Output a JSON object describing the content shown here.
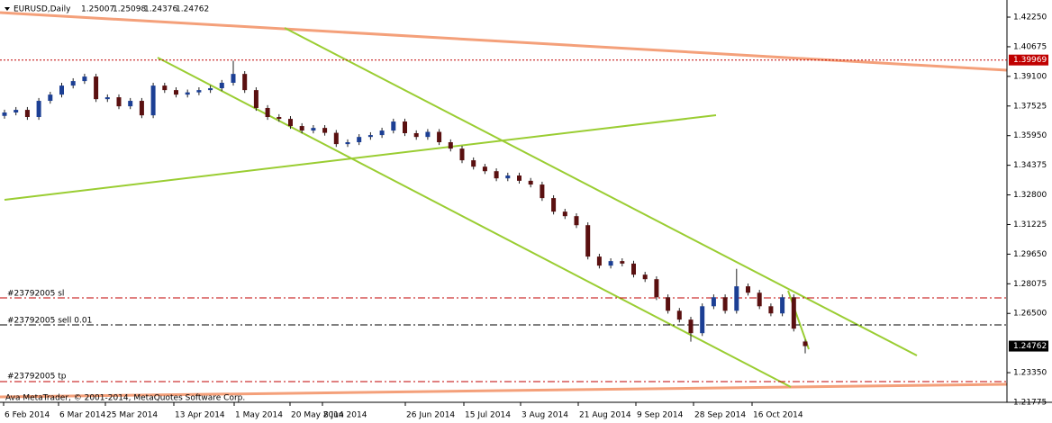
{
  "chart_data": {
    "type": "candlestick",
    "symbol": "EURUSD,Daily",
    "footer": "Ava MetaTrader, © 2001-2014, MetaQuotes Software Corp.",
    "orders": [
      "#23792005 sl",
      "#23792005 sell 0.01",
      "#23792005 tp"
    ],
    "marked_level": 1.39969,
    "up_color": "#1c3f94",
    "down_color": "#5a1010",
    "wick_color": "#222222",
    "level_color": "#c00000",
    "xtick_labels": [
      "6 Feb 2014",
      "6 Mar 2014",
      "25 Mar 2014",
      "13 Apr 2014",
      "1 May 2014",
      "20 May 2014",
      "8 Jun 2014",
      "26 Jun 2014",
      "15 Jul 2014",
      "3 Aug 2014",
      "21 Aug 2014",
      "9 Sep 2014",
      "28 Sep 2014",
      "16 Oct 2014"
    ],
    "open": [
      1.37,
      1.3718,
      1.3732,
      1.3694,
      1.378,
      1.3813,
      1.3861,
      1.3885,
      1.3909,
      1.3789,
      1.3799,
      1.3751,
      1.378,
      1.3703,
      1.3861,
      1.3837,
      1.3813,
      1.3825,
      1.3837,
      1.3847,
      1.3876,
      1.3923,
      1.3837,
      1.3742,
      1.3694,
      1.3684,
      1.3646,
      1.3622,
      1.3636,
      1.361,
      1.355,
      1.356,
      1.3588,
      1.3598,
      1.3622,
      1.367,
      1.3608,
      1.3588,
      1.3615,
      1.356,
      1.3526,
      1.3464,
      1.343,
      1.3406,
      1.3368,
      1.3383,
      1.3355,
      1.3335,
      1.3263,
      1.3191,
      1.3167,
      1.3119,
      1.2952,
      1.2904,
      1.2928,
      1.2915,
      1.2856,
      1.2832,
      1.2736,
      1.2664,
      1.2617,
      1.2545,
      1.2688,
      1.2736,
      1.2664,
      1.2794,
      1.276,
      1.2688,
      1.265,
      1.2736,
      1.25007
    ],
    "high": [
      1.3733,
      1.3747,
      1.3747,
      1.3795,
      1.3828,
      1.3876,
      1.39,
      1.3924,
      1.3924,
      1.3814,
      1.3814,
      1.3795,
      1.3795,
      1.3876,
      1.3876,
      1.3852,
      1.384,
      1.3852,
      1.3862,
      1.3891,
      1.3993,
      1.3938,
      1.3852,
      1.3757,
      1.3709,
      1.3699,
      1.3661,
      1.3651,
      1.3651,
      1.3625,
      1.3575,
      1.3603,
      1.3613,
      1.3637,
      1.3685,
      1.3685,
      1.3623,
      1.363,
      1.363,
      1.3575,
      1.3541,
      1.3479,
      1.3445,
      1.3421,
      1.3398,
      1.3398,
      1.337,
      1.335,
      1.3278,
      1.3206,
      1.3182,
      1.3134,
      1.2967,
      1.2943,
      1.2943,
      1.293,
      1.2871,
      1.2847,
      1.2751,
      1.2679,
      1.2632,
      1.2703,
      1.2751,
      1.2751,
      1.2887,
      1.2809,
      1.2775,
      1.2703,
      1.2751,
      1.2751,
      1.25098
    ],
    "low": [
      1.3685,
      1.3703,
      1.3679,
      1.3679,
      1.3765,
      1.3798,
      1.3846,
      1.387,
      1.3774,
      1.3774,
      1.3736,
      1.3736,
      1.3688,
      1.3688,
      1.3822,
      1.3798,
      1.3798,
      1.381,
      1.3822,
      1.3832,
      1.3861,
      1.3822,
      1.3727,
      1.3679,
      1.3669,
      1.3631,
      1.3607,
      1.3607,
      1.3595,
      1.3535,
      1.3535,
      1.3545,
      1.3573,
      1.3583,
      1.3607,
      1.3593,
      1.3573,
      1.3573,
      1.3545,
      1.3511,
      1.3449,
      1.3415,
      1.3391,
      1.3353,
      1.3353,
      1.334,
      1.332,
      1.3248,
      1.3176,
      1.3152,
      1.3104,
      1.2937,
      1.2889,
      1.2889,
      1.29,
      1.2841,
      1.2817,
      1.2721,
      1.2649,
      1.2602,
      1.25,
      1.253,
      1.2673,
      1.2649,
      1.2649,
      1.2745,
      1.2673,
      1.2635,
      1.2635,
      1.2554,
      1.24376
    ],
    "close": [
      1.3718,
      1.3732,
      1.3694,
      1.378,
      1.3813,
      1.3861,
      1.3885,
      1.3909,
      1.3789,
      1.3799,
      1.3751,
      1.378,
      1.3703,
      1.3861,
      1.3837,
      1.3813,
      1.3825,
      1.3837,
      1.3847,
      1.3876,
      1.3923,
      1.3837,
      1.3742,
      1.3694,
      1.3684,
      1.3646,
      1.3622,
      1.3636,
      1.361,
      1.355,
      1.356,
      1.3588,
      1.3598,
      1.3622,
      1.367,
      1.3608,
      1.3588,
      1.3615,
      1.356,
      1.3526,
      1.3464,
      1.343,
      1.3406,
      1.3368,
      1.3383,
      1.3355,
      1.3335,
      1.3263,
      1.3191,
      1.3167,
      1.3119,
      1.2952,
      1.2904,
      1.2928,
      1.2915,
      1.2856,
      1.2832,
      1.2736,
      1.2664,
      1.2617,
      1.2545,
      1.2688,
      1.2736,
      1.2664,
      1.2794,
      1.276,
      1.2688,
      1.265,
      1.2736,
      1.2569,
      1.24762
    ],
    "ylim": [
      1.21775,
      1.4316
    ],
    "yticks": [
      {
        "value": 1.4225,
        "label": "1.42250"
      },
      {
        "value": 1.40675,
        "label": "1.40675"
      },
      {
        "value": 1.391,
        "label": "1.39100"
      },
      {
        "value": 1.37525,
        "label": "1.37525"
      },
      {
        "value": 1.3595,
        "label": "1.35950"
      },
      {
        "value": 1.34375,
        "label": "1.34375"
      },
      {
        "value": 1.328,
        "label": "1.32800"
      },
      {
        "value": 1.31225,
        "label": "1.31225"
      },
      {
        "value": 1.2965,
        "label": "1.29650"
      },
      {
        "value": 1.28075,
        "label": "1.28075"
      },
      {
        "value": 1.265,
        "label": "1.26500"
      },
      {
        "value": 1.2335,
        "label": "1.23350"
      },
      {
        "value": 1.21775,
        "label": "1.21775"
      }
    ]
  }
}
